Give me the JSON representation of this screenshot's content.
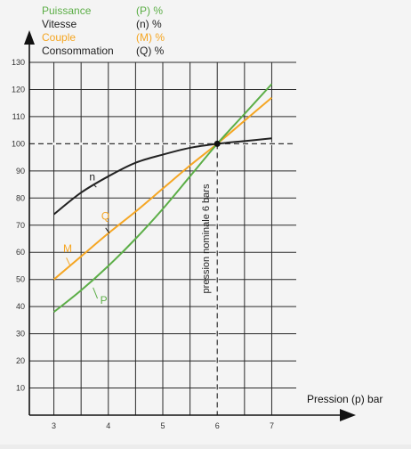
{
  "chart_data": {
    "type": "line",
    "xlabel": "Pression (p) bar",
    "ylabel": "",
    "xlim": [
      2.55,
      7.45
    ],
    "ylim": [
      0,
      130
    ],
    "x_ticks": [
      3,
      4,
      5,
      6,
      7
    ],
    "y_ticks": [
      10,
      20,
      30,
      40,
      50,
      60,
      70,
      80,
      90,
      100,
      110,
      120,
      130
    ],
    "grid": true,
    "legend_position": "top-left",
    "legend": [
      {
        "name": "Puissance",
        "symbol": "(P) %",
        "color": "#5cae47"
      },
      {
        "name": "Vitesse",
        "symbol": "(n) %",
        "color": "#222222"
      },
      {
        "name": "Couple",
        "symbol": "(M) %",
        "color": "#f5a623"
      },
      {
        "name": "Consommation",
        "symbol": "(Q) %",
        "color": "#222222"
      }
    ],
    "series": [
      {
        "name": "n",
        "color": "#222222",
        "x": [
          3,
          3.5,
          4,
          4.5,
          5,
          5.5,
          6,
          6.5,
          7
        ],
        "y": [
          74,
          82,
          88,
          93,
          96,
          98.5,
          100,
          101,
          102
        ],
        "label_at": [
          3.65,
          86.5
        ]
      },
      {
        "name": "Q",
        "color": "#f5a623",
        "x": [
          3,
          3.5,
          4,
          4.5,
          5,
          5.5,
          6,
          6.5,
          7
        ],
        "y": [
          50,
          58.5,
          67,
          75,
          83.5,
          92,
          100,
          108.5,
          117
        ],
        "label_at": [
          3.87,
          72
        ]
      },
      {
        "name": "M",
        "color": "#f5a623",
        "label_at": [
          3.17,
          60
        ]
      },
      {
        "name": "P",
        "color": "#5cae47",
        "x": [
          3,
          3.5,
          4,
          4.5,
          5,
          5.5,
          6,
          6.5,
          7
        ],
        "y": [
          38,
          46,
          55,
          65,
          76,
          88,
          100,
          111,
          122
        ],
        "label_at": [
          3.85,
          41
        ]
      }
    ],
    "reference_lines": {
      "x": 6,
      "y": 100,
      "style": "dashed",
      "annotation": "pression nominale 6 bars",
      "point": [
        6,
        100
      ]
    }
  }
}
